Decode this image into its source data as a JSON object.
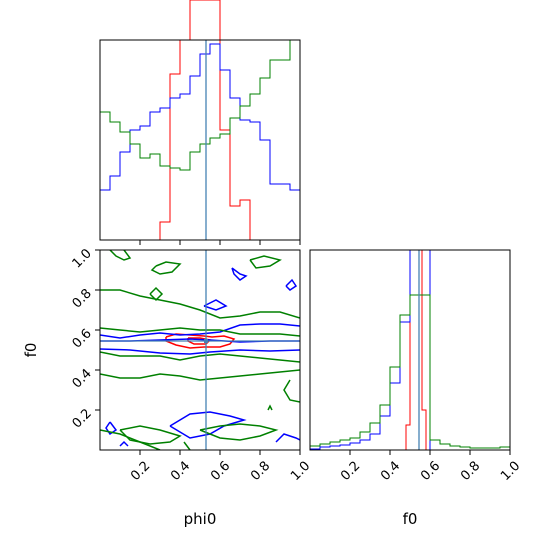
{
  "chart_data": {
    "type": "corner",
    "parameters": [
      "phi0",
      "f0"
    ],
    "truth": {
      "phi0": 0.53,
      "f0": 0.545
    },
    "truth_color": "#4682b4",
    "axes": {
      "phi0": {
        "label": "phi0",
        "range": [
          0.0,
          1.0
        ],
        "ticks": [
          0.2,
          0.4,
          0.6,
          0.8,
          1.0
        ],
        "tick_labels": [
          "0.2",
          "0.4",
          "0.6",
          "0.8",
          "1.0"
        ]
      },
      "f0": {
        "label": "f0",
        "range": [
          0.0,
          1.0
        ],
        "ticks": [
          0.2,
          0.4,
          0.6,
          0.8,
          1.0
        ],
        "tick_labels": [
          "0.2",
          "0.4",
          "0.6",
          "0.8",
          "1.0"
        ]
      }
    },
    "series": [
      {
        "color": "#ff0000",
        "phi0_hist": {
          "edges": [
            0.0,
            0.05,
            0.1,
            0.15,
            0.2,
            0.25,
            0.3,
            0.35,
            0.4,
            0.45,
            0.5,
            0.55,
            0.6,
            0.65,
            0.7,
            0.75,
            0.8,
            0.85,
            0.9,
            0.95,
            1.0
          ],
          "counts": [
            0,
            0,
            0,
            0,
            0,
            0,
            0.09,
            0.83,
            1.0,
            1.2,
            1.2,
            1.2,
            0.55,
            0.17,
            0.2,
            0,
            0,
            0,
            0,
            0
          ]
        },
        "f0_hist": {
          "edges": [
            0.46,
            0.48,
            0.5,
            0.52,
            0.54,
            0.56,
            0.58,
            0.6,
            0.62
          ],
          "counts": [
            0,
            0.25,
            2.0,
            2.0,
            2.0,
            0.4,
            0,
            0
          ]
        },
        "contours": [
          [
            [
              0.33,
              0.565
            ],
            [
              0.38,
              0.58
            ],
            [
              0.45,
              0.575
            ],
            [
              0.52,
              0.57
            ],
            [
              0.56,
              0.565
            ],
            [
              0.62,
              0.57
            ],
            [
              0.67,
              0.555
            ],
            [
              0.65,
              0.53
            ],
            [
              0.6,
              0.515
            ],
            [
              0.52,
              0.515
            ],
            [
              0.45,
              0.51
            ],
            [
              0.38,
              0.525
            ],
            [
              0.33,
              0.545
            ],
            [
              0.33,
              0.565
            ]
          ],
          [
            [
              0.44,
              0.56
            ],
            [
              0.5,
              0.56
            ],
            [
              0.55,
              0.55
            ],
            [
              0.53,
              0.53
            ],
            [
              0.47,
              0.53
            ],
            [
              0.44,
              0.545
            ],
            [
              0.44,
              0.56
            ]
          ]
        ]
      },
      {
        "color": "#0000ff",
        "phi0_hist": {
          "edges": [
            0.0,
            0.05,
            0.1,
            0.15,
            0.2,
            0.25,
            0.3,
            0.35,
            0.4,
            0.45,
            0.5,
            0.55,
            0.6,
            0.65,
            0.7,
            0.75,
            0.8,
            0.85,
            0.9,
            0.95,
            1.0
          ],
          "counts": [
            0.25,
            0.32,
            0.44,
            0.55,
            0.57,
            0.64,
            0.66,
            0.71,
            0.73,
            0.82,
            0.93,
            0.98,
            0.85,
            0.71,
            0.6,
            0.59,
            0.5,
            0.28,
            0.28,
            0.25
          ]
        },
        "f0_hist": {
          "edges": [
            0.0,
            0.05,
            0.1,
            0.15,
            0.2,
            0.25,
            0.3,
            0.35,
            0.4,
            0.45,
            0.5,
            0.55,
            0.6,
            0.65,
            0.7,
            0.75,
            0.8,
            0.85,
            0.9,
            0.95,
            1.0
          ],
          "counts": [
            0.01,
            0.03,
            0.04,
            0.05,
            0.07,
            0.1,
            0.16,
            0.34,
            0.67,
            1.28,
            2.7,
            2.1,
            0.0,
            0.0,
            0.0,
            0.0,
            0.0,
            0.0,
            0.0,
            0.0
          ]
        },
        "contours": [
          [
            [
              0.0,
              0.575
            ],
            [
              0.1,
              0.56
            ],
            [
              0.2,
              0.575
            ],
            [
              0.3,
              0.585
            ],
            [
              0.4,
              0.575
            ],
            [
              0.5,
              0.58
            ],
            [
              0.6,
              0.59
            ],
            [
              0.7,
              0.625
            ],
            [
              0.8,
              0.63
            ],
            [
              0.9,
              0.63
            ],
            [
              1.0,
              0.62
            ]
          ],
          [
            [
              0.0,
              0.545
            ],
            [
              0.15,
              0.545
            ],
            [
              0.3,
              0.55
            ],
            [
              0.45,
              0.555
            ],
            [
              0.55,
              0.55
            ],
            [
              0.7,
              0.54
            ],
            [
              0.85,
              0.545
            ],
            [
              1.0,
              0.545
            ]
          ],
          [
            [
              0.0,
              0.505
            ],
            [
              0.15,
              0.5
            ],
            [
              0.3,
              0.485
            ],
            [
              0.45,
              0.48
            ],
            [
              0.55,
              0.49
            ],
            [
              0.7,
              0.5
            ],
            [
              0.85,
              0.495
            ],
            [
              1.0,
              0.5
            ]
          ],
          [
            [
              0.66,
              0.91
            ],
            [
              0.7,
              0.88
            ],
            [
              0.73,
              0.87
            ],
            [
              0.7,
              0.85
            ],
            [
              0.67,
              0.88
            ],
            [
              0.66,
              0.91
            ]
          ],
          [
            [
              0.52,
              0.72
            ],
            [
              0.58,
              0.75
            ],
            [
              0.63,
              0.72
            ],
            [
              0.58,
              0.7
            ],
            [
              0.52,
              0.72
            ]
          ],
          [
            [
              0.1,
              0.02
            ],
            [
              0.12,
              0.04
            ],
            [
              0.14,
              0.02
            ]
          ],
          [
            [
              0.05,
              0.14
            ],
            [
              0.08,
              0.1
            ],
            [
              0.05,
              0.08
            ],
            [
              0.03,
              0.11
            ],
            [
              0.05,
              0.14
            ]
          ],
          [
            [
              0.35,
              0.12
            ],
            [
              0.45,
              0.18
            ],
            [
              0.55,
              0.19
            ],
            [
              0.65,
              0.17
            ],
            [
              0.72,
              0.15
            ],
            [
              0.62,
              0.12
            ],
            [
              0.55,
              0.08
            ],
            [
              0.45,
              0.06
            ],
            [
              0.35,
              0.12
            ]
          ],
          [
            [
              0.88,
              0.04
            ],
            [
              0.92,
              0.08
            ],
            [
              0.98,
              0.06
            ],
            [
              1.0,
              0.05
            ]
          ],
          [
            [
              0.93,
              0.82
            ],
            [
              0.96,
              0.85
            ],
            [
              0.98,
              0.82
            ],
            [
              0.95,
              0.8
            ],
            [
              0.93,
              0.82
            ]
          ]
        ]
      },
      {
        "color": "#008000",
        "phi0_hist": {
          "edges": [
            0.0,
            0.05,
            0.1,
            0.15,
            0.2,
            0.25,
            0.3,
            0.35,
            0.4,
            0.45,
            0.5,
            0.55,
            0.6,
            0.65,
            0.7,
            0.75,
            0.8,
            0.85,
            0.9,
            0.95,
            1.0
          ],
          "counts": [
            0.64,
            0.59,
            0.54,
            0.48,
            0.41,
            0.43,
            0.37,
            0.36,
            0.35,
            0.44,
            0.48,
            0.51,
            0.53,
            0.61,
            0.67,
            0.73,
            0.81,
            0.9,
            0.9,
            1.0
          ]
        },
        "f0_hist": {
          "edges": [
            0.0,
            0.05,
            0.1,
            0.15,
            0.2,
            0.25,
            0.3,
            0.35,
            0.4,
            0.45,
            0.5,
            0.55,
            0.6,
            0.65,
            0.7,
            0.75,
            0.8,
            0.85,
            0.9,
            0.95,
            1.0
          ],
          "counts": [
            0.04,
            0.06,
            0.08,
            0.1,
            0.12,
            0.18,
            0.27,
            0.45,
            0.83,
            1.35,
            1.55,
            1.55,
            0.1,
            0.06,
            0.04,
            0.03,
            0.02,
            0.02,
            0.02,
            0.03
          ]
        },
        "contours": [
          [
            [
              0.0,
              0.8
            ],
            [
              0.1,
              0.8
            ],
            [
              0.2,
              0.77
            ],
            [
              0.3,
              0.75
            ],
            [
              0.4,
              0.73
            ],
            [
              0.5,
              0.7
            ],
            [
              0.6,
              0.66
            ],
            [
              0.7,
              0.67
            ],
            [
              0.8,
              0.69
            ],
            [
              0.9,
              0.69
            ],
            [
              1.0,
              0.66
            ]
          ],
          [
            [
              0.0,
              0.61
            ],
            [
              0.1,
              0.6
            ],
            [
              0.2,
              0.59
            ],
            [
              0.3,
              0.6
            ],
            [
              0.4,
              0.61
            ],
            [
              0.5,
              0.6
            ],
            [
              0.6,
              0.6
            ],
            [
              0.7,
              0.58
            ],
            [
              0.8,
              0.58
            ],
            [
              0.9,
              0.58
            ],
            [
              1.0,
              0.57
            ]
          ],
          [
            [
              0.0,
              0.49
            ],
            [
              0.1,
              0.47
            ],
            [
              0.2,
              0.47
            ],
            [
              0.3,
              0.47
            ],
            [
              0.4,
              0.45
            ],
            [
              0.5,
              0.47
            ],
            [
              0.6,
              0.48
            ],
            [
              0.7,
              0.47
            ],
            [
              0.8,
              0.46
            ],
            [
              0.9,
              0.45
            ],
            [
              1.0,
              0.44
            ]
          ],
          [
            [
              0.0,
              0.38
            ],
            [
              0.1,
              0.36
            ],
            [
              0.2,
              0.36
            ],
            [
              0.3,
              0.38
            ],
            [
              0.4,
              0.37
            ],
            [
              0.5,
              0.35
            ],
            [
              0.6,
              0.36
            ],
            [
              0.7,
              0.37
            ],
            [
              0.8,
              0.38
            ],
            [
              0.9,
              0.39
            ],
            [
              1.0,
              0.4
            ]
          ],
          [
            [
              0.05,
              1.0
            ],
            [
              0.08,
              0.97
            ],
            [
              0.12,
              0.95
            ],
            [
              0.15,
              0.96
            ],
            [
              0.12,
              1.0
            ]
          ],
          [
            [
              0.28,
              0.92
            ],
            [
              0.33,
              0.94
            ],
            [
              0.4,
              0.93
            ],
            [
              0.36,
              0.89
            ],
            [
              0.3,
              0.88
            ],
            [
              0.26,
              0.9
            ],
            [
              0.28,
              0.92
            ]
          ],
          [
            [
              0.25,
              0.78
            ],
            [
              0.28,
              0.81
            ],
            [
              0.31,
              0.78
            ],
            [
              0.28,
              0.75
            ],
            [
              0.25,
              0.78
            ]
          ],
          [
            [
              0.75,
              0.95
            ],
            [
              0.82,
              0.97
            ],
            [
              0.9,
              0.95
            ],
            [
              0.85,
              0.92
            ],
            [
              0.78,
              0.91
            ],
            [
              0.75,
              0.95
            ]
          ],
          [
            [
              0.95,
              0.35
            ],
            [
              0.92,
              0.3
            ],
            [
              0.95,
              0.25
            ],
            [
              1.0,
              0.24
            ]
          ],
          [
            [
              0.0,
              0.1
            ],
            [
              0.1,
              0.08
            ],
            [
              0.2,
              0.04
            ],
            [
              0.3,
              0.0
            ]
          ],
          [
            [
              0.1,
              0.1
            ],
            [
              0.2,
              0.12
            ],
            [
              0.3,
              0.1
            ],
            [
              0.4,
              0.07
            ],
            [
              0.35,
              0.04
            ],
            [
              0.25,
              0.03
            ],
            [
              0.15,
              0.05
            ],
            [
              0.1,
              0.1
            ]
          ],
          [
            [
              0.5,
              0.1
            ],
            [
              0.6,
              0.12
            ],
            [
              0.7,
              0.13
            ],
            [
              0.8,
              0.12
            ],
            [
              0.88,
              0.1
            ],
            [
              0.8,
              0.07
            ],
            [
              0.7,
              0.05
            ],
            [
              0.6,
              0.06
            ],
            [
              0.5,
              0.1
            ]
          ],
          [
            [
              0.84,
              0.2
            ],
            [
              0.85,
              0.22
            ],
            [
              0.86,
              0.2
            ]
          ],
          [
            [
              0.42,
              0.04
            ],
            [
              0.45,
              0.0
            ]
          ]
        ]
      }
    ]
  }
}
